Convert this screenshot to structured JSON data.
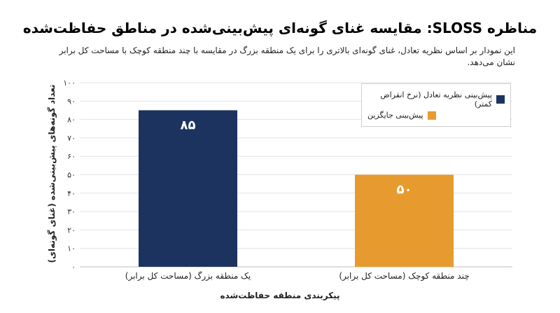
{
  "chart_data": {
    "type": "bar",
    "title": "مناظره SLOSS: مقایسه غنای گونه‌ای پیش‌بینی‌شده در مناطق حفاظت‌شده",
    "subtitle": "این نمودار بر اساس نظریه تعادل، غنای گونه‌ای بالاتری را برای یک منطقه بزرگ در مقایسه با چند منطقه کوچک با مساحت کل برابر نشان می‌دهد.",
    "xlabel": "پیکربندی منطقه حفاظت‌شده",
    "ylabel": "تعداد گونه‌های پیش‌بینی‌شده (غنای گونه‌ای)",
    "categories": [
      "یک منطقه بزرگ (مساحت کل برابر)",
      "چند منطقه کوچک (مساحت کل برابر)"
    ],
    "values": [
      85,
      50
    ],
    "value_labels": [
      "۸۵",
      "۵۰"
    ],
    "bar_colors": [
      "#1c3360",
      "#e79b2f"
    ],
    "ylim": [
      0,
      100
    ],
    "yticks": [
      0,
      10,
      20,
      30,
      40,
      50,
      60,
      70,
      80,
      90,
      100
    ],
    "grid": true,
    "legend": {
      "placement": "top-right",
      "entries": [
        {
          "label": "پیش‌بینی نظریه تعادل (نرخ انقراض کمتر)",
          "color": "#1c3360"
        },
        {
          "label": "پیش‌بینی جایگزین",
          "color": "#e79b2f"
        }
      ]
    }
  }
}
